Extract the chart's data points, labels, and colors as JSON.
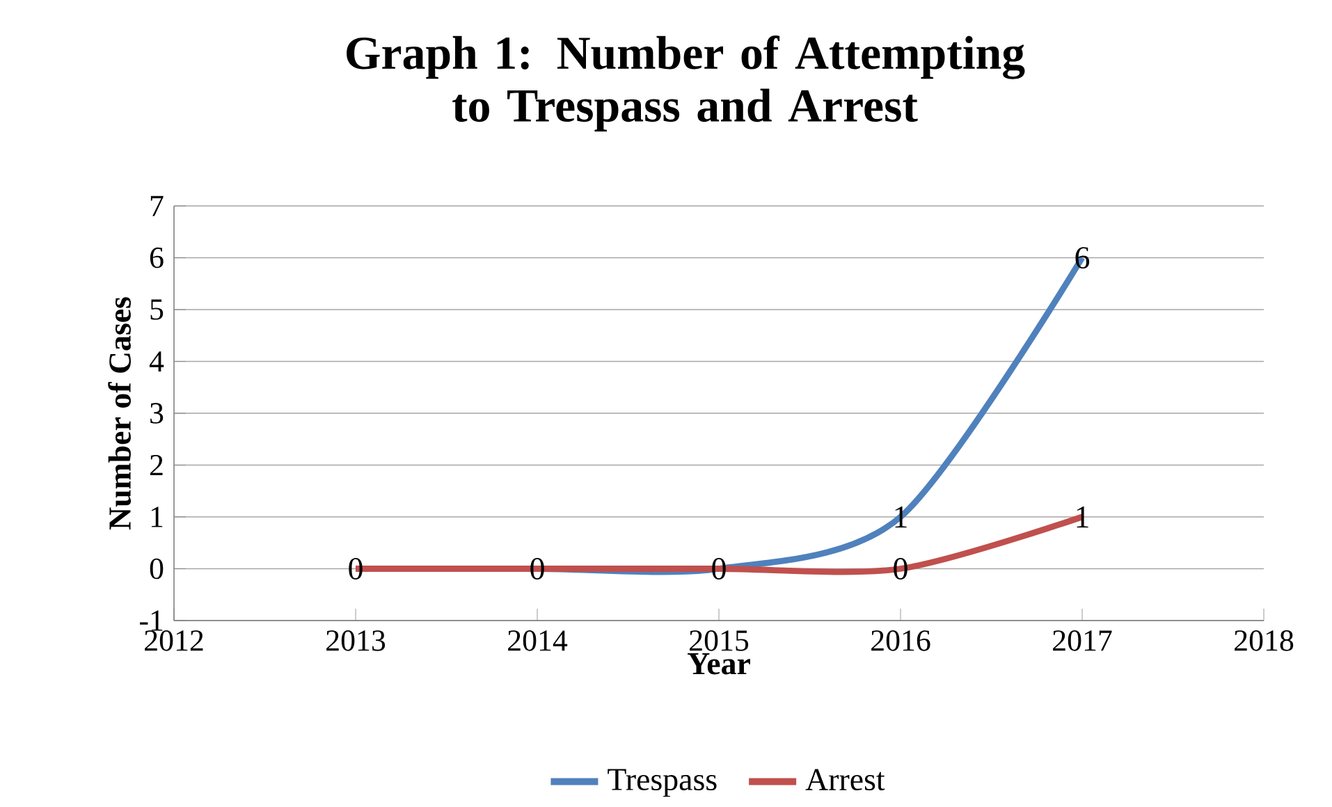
{
  "chart_data": {
    "type": "line",
    "title": "Graph 1: Number of Attempting to Trespass and Arrest",
    "xlabel": "Year",
    "ylabel": "Number of Cases",
    "x": [
      2013,
      2014,
      2015,
      2016,
      2017
    ],
    "series": [
      {
        "name": "Trespass",
        "color": "#4f81bd",
        "values": [
          0,
          0,
          0,
          1,
          6
        ],
        "value_labels": [
          "0",
          "0",
          "0",
          "1",
          "6"
        ]
      },
      {
        "name": "Arrest",
        "color": "#c0504d",
        "values": [
          0,
          0,
          0,
          0,
          1
        ],
        "value_labels": [
          null,
          null,
          null,
          "0",
          "1"
        ]
      }
    ],
    "xlim": [
      2012,
      2018
    ],
    "xticks": [
      2012,
      2013,
      2014,
      2015,
      2016,
      2017,
      2018
    ],
    "ylim": [
      -1,
      7
    ],
    "yticks": [
      -1,
      0,
      1,
      2,
      3,
      4,
      5,
      6,
      7
    ],
    "grid": "y",
    "legend": "bottom",
    "marker": "none",
    "line_style": "solid"
  }
}
